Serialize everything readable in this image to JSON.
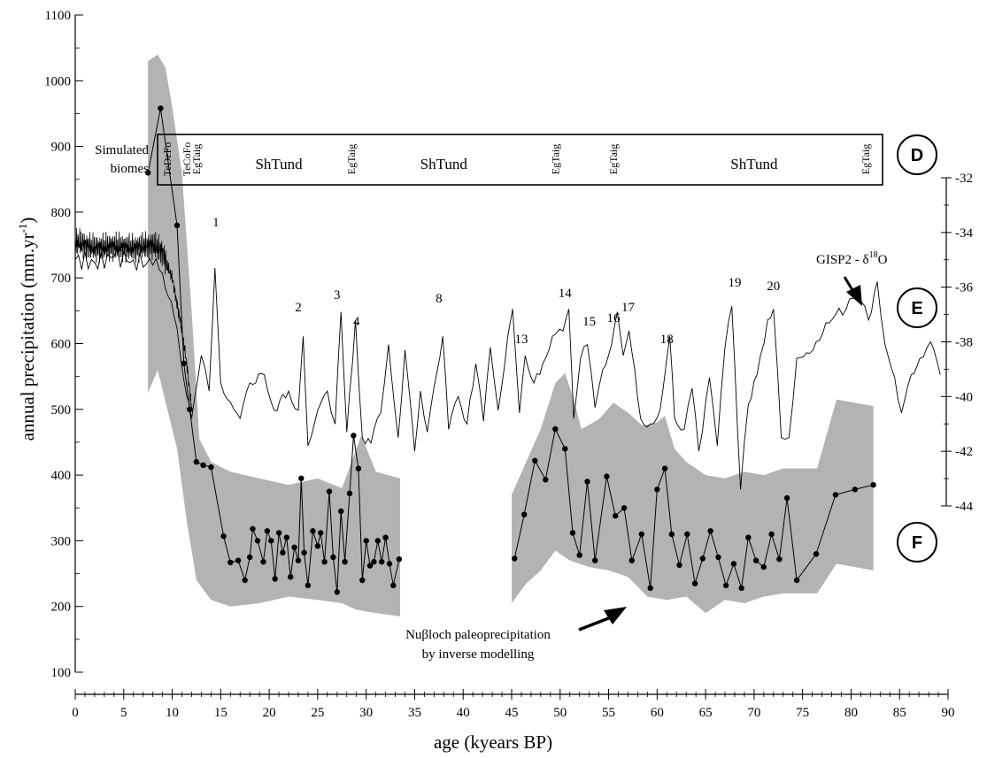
{
  "chart_data": {
    "type": "line",
    "xlabel": "age (kyears BP)",
    "ylabel_left": "annual precipitation (mm.yr-1)",
    "xlim": [
      0,
      90
    ],
    "ylim_left": [
      100,
      1100
    ],
    "ylim_right": [
      -44,
      -32
    ],
    "x_ticks": [
      "0",
      "5",
      "10",
      "15",
      "20",
      "25",
      "30",
      "35",
      "40",
      "45",
      "50",
      "55",
      "60",
      "65",
      "70",
      "75",
      "80",
      "85",
      "90"
    ],
    "y_ticks_left": [
      "100",
      "200",
      "300",
      "400",
      "500",
      "600",
      "700",
      "800",
      "900",
      "1000",
      "1100"
    ],
    "y_ticks_right": [
      "-32",
      "-34",
      "-36",
      "-38",
      "-40",
      "-42",
      "-44"
    ],
    "panel_markers": [
      "D",
      "E",
      "F"
    ],
    "biomes": {
      "label": "Simulated biomes",
      "entries": [
        {
          "text": "TeDeFo",
          "x": 9.5,
          "orientation": "vertical"
        },
        {
          "text": "TeCoFo",
          "x": 11.5,
          "orientation": "vertical"
        },
        {
          "text": "EgTaig",
          "x": 12.5,
          "orientation": "vertical"
        },
        {
          "text": "ShTund",
          "x": 21,
          "orientation": "horizontal"
        },
        {
          "text": "EgTaig",
          "x": 28.5,
          "orientation": "vertical"
        },
        {
          "text": "ShTund",
          "x": 38,
          "orientation": "horizontal"
        },
        {
          "text": "EgTaig",
          "x": 49.5,
          "orientation": "vertical"
        },
        {
          "text": "EgTaig",
          "x": 55.5,
          "orientation": "vertical"
        },
        {
          "text": "ShTund",
          "x": 70,
          "orientation": "horizontal"
        },
        {
          "text": "EgTaig",
          "x": 81.5,
          "orientation": "vertical"
        }
      ]
    },
    "events": [
      {
        "label": "1",
        "x": 14.5
      },
      {
        "label": "2",
        "x": 23
      },
      {
        "label": "3",
        "x": 27
      },
      {
        "label": "4",
        "x": 29
      },
      {
        "label": "8",
        "x": 37.5
      },
      {
        "label": "13",
        "x": 46
      },
      {
        "label": "14",
        "x": 50.5
      },
      {
        "label": "15",
        "x": 53
      },
      {
        "label": "16",
        "x": 55.5
      },
      {
        "label": "17",
        "x": 57
      },
      {
        "label": "18",
        "x": 61
      },
      {
        "label": "19",
        "x": 68
      },
      {
        "label": "20",
        "x": 72
      }
    ],
    "annotations": {
      "gisp2_label": "GISP2 - δ18O",
      "nussloch_line1": "Nuβloch paleoprecipitation",
      "nussloch_line2": "by inverse modelling"
    },
    "series": [
      {
        "name": "Nuβloch paleoprecipitation",
        "style": "line-with-dots",
        "points": [
          [
            7.5,
            860
          ],
          [
            8.8,
            958
          ],
          [
            10.5,
            780
          ],
          [
            11.2,
            570
          ],
          [
            11.8,
            500
          ],
          [
            12.5,
            420
          ],
          [
            13.2,
            415
          ],
          [
            14,
            412
          ],
          [
            15.3,
            307
          ],
          [
            16,
            267
          ],
          [
            16.8,
            270
          ],
          [
            17.5,
            240
          ],
          [
            18,
            275
          ],
          [
            18.3,
            318
          ],
          [
            18.8,
            300
          ],
          [
            19.4,
            268
          ],
          [
            19.8,
            315
          ],
          [
            20.2,
            300
          ],
          [
            20.6,
            242
          ],
          [
            21,
            312
          ],
          [
            21.4,
            282
          ],
          [
            21.8,
            305
          ],
          [
            22.2,
            245
          ],
          [
            22.6,
            290
          ],
          [
            23,
            270
          ],
          [
            23.3,
            395
          ],
          [
            23.6,
            282
          ],
          [
            24,
            232
          ],
          [
            24.5,
            315
          ],
          [
            25,
            292
          ],
          [
            25.3,
            312
          ],
          [
            25.7,
            268
          ],
          [
            26.2,
            375
          ],
          [
            26.6,
            275
          ],
          [
            27,
            222
          ],
          [
            27.4,
            345
          ],
          [
            27.8,
            268
          ],
          [
            28.3,
            372
          ],
          [
            28.7,
            460
          ],
          [
            29.2,
            410
          ],
          [
            29.6,
            240
          ],
          [
            30,
            300
          ],
          [
            30.4,
            262
          ],
          [
            30.8,
            268
          ],
          [
            31.2,
            300
          ],
          [
            31.6,
            268
          ],
          [
            32,
            305
          ],
          [
            32.4,
            265
          ],
          [
            32.8,
            232
          ],
          [
            33.4,
            272
          ]
        ]
      },
      {
        "name": "Nuβloch paleoprecipitation (late segment)",
        "style": "line-with-dots",
        "points": [
          [
            45.3,
            273
          ],
          [
            46.3,
            340
          ],
          [
            47.4,
            422
          ],
          [
            48.5,
            393
          ],
          [
            49.5,
            470
          ],
          [
            50.5,
            440
          ],
          [
            51.3,
            312
          ],
          [
            52,
            278
          ],
          [
            52.8,
            390
          ],
          [
            53.6,
            270
          ],
          [
            54.8,
            398
          ],
          [
            55.7,
            338
          ],
          [
            56.6,
            350
          ],
          [
            57.4,
            270
          ],
          [
            58.4,
            310
          ],
          [
            59.3,
            228
          ],
          [
            60,
            378
          ],
          [
            60.8,
            410
          ],
          [
            61.5,
            310
          ],
          [
            62.3,
            263
          ],
          [
            63.1,
            310
          ],
          [
            63.9,
            235
          ],
          [
            64.7,
            273
          ],
          [
            65.5,
            315
          ],
          [
            66.3,
            275
          ],
          [
            67.1,
            232
          ],
          [
            67.9,
            265
          ],
          [
            68.7,
            228
          ],
          [
            69.4,
            305
          ],
          [
            70.2,
            270
          ],
          [
            71,
            260
          ],
          [
            71.8,
            310
          ],
          [
            72.6,
            272
          ],
          [
            73.4,
            365
          ],
          [
            74.4,
            240
          ],
          [
            76.4,
            280
          ],
          [
            78.4,
            370
          ],
          [
            80.4,
            378
          ],
          [
            82.3,
            385
          ]
        ]
      },
      {
        "name": "GISP2 - δ18O",
        "axis": "right",
        "style": "line",
        "points": [
          [
            0,
            -35
          ],
          [
            2,
            -35.1
          ],
          [
            4,
            -34.9
          ],
          [
            6,
            -35
          ],
          [
            8,
            -35.2
          ],
          [
            9,
            -35.5
          ],
          [
            10.5,
            -37.5
          ],
          [
            11.5,
            -40
          ],
          [
            12,
            -40.8
          ],
          [
            13,
            -38.5
          ],
          [
            13.8,
            -39.8
          ],
          [
            14.4,
            -35.3
          ],
          [
            15,
            -39.5
          ],
          [
            16,
            -40.2
          ],
          [
            17,
            -40.8
          ],
          [
            18,
            -39.5
          ],
          [
            19.5,
            -39.2
          ],
          [
            20.5,
            -40.5
          ],
          [
            22,
            -39.8
          ],
          [
            23,
            -40.5
          ],
          [
            23.5,
            -37.8
          ],
          [
            24,
            -41.8
          ],
          [
            25,
            -40.5
          ],
          [
            26,
            -39.8
          ],
          [
            26.8,
            -41
          ],
          [
            27.4,
            -36.9
          ],
          [
            28,
            -41.3
          ],
          [
            28.9,
            -37.2
          ],
          [
            29.6,
            -41.5
          ],
          [
            30.5,
            -41.7
          ],
          [
            31.5,
            -40.6
          ],
          [
            32.3,
            -38.1
          ],
          [
            33.3,
            -41.5
          ],
          [
            34,
            -38.3
          ],
          [
            35,
            -42
          ],
          [
            35.6,
            -39.8
          ],
          [
            36.3,
            -41.3
          ],
          [
            37.3,
            -39.1
          ],
          [
            37.9,
            -37.8
          ],
          [
            38.5,
            -41.2
          ],
          [
            39.5,
            -40
          ],
          [
            40.4,
            -41
          ],
          [
            41.3,
            -38.8
          ],
          [
            42.1,
            -40.9
          ],
          [
            42.8,
            -38.2
          ],
          [
            43.6,
            -40.5
          ],
          [
            44.6,
            -37.8
          ],
          [
            45.1,
            -36.8
          ],
          [
            45.8,
            -40.6
          ],
          [
            46.4,
            -38.5
          ],
          [
            47.3,
            -39.5
          ],
          [
            48.2,
            -38.8
          ],
          [
            49.2,
            -37.8
          ],
          [
            50.3,
            -37.6
          ],
          [
            50.9,
            -36.8
          ],
          [
            51.4,
            -40.8
          ],
          [
            52.1,
            -38.6
          ],
          [
            52.8,
            -38.1
          ],
          [
            53.6,
            -40.4
          ],
          [
            54.4,
            -39
          ],
          [
            55.3,
            -38.1
          ],
          [
            55.9,
            -36.9
          ],
          [
            56.5,
            -38.5
          ],
          [
            57.1,
            -37.6
          ],
          [
            58.3,
            -40.8
          ],
          [
            59.3,
            -41
          ],
          [
            60.3,
            -40.5
          ],
          [
            61.3,
            -37.8
          ],
          [
            61.8,
            -40.8
          ],
          [
            62.8,
            -41.2
          ],
          [
            63.6,
            -39.7
          ],
          [
            64.3,
            -42
          ],
          [
            65.4,
            -39.3
          ],
          [
            66.2,
            -41.8
          ],
          [
            67,
            -38.2
          ],
          [
            67.7,
            -36.7
          ],
          [
            68.6,
            -43.4
          ],
          [
            69.4,
            -40.3
          ],
          [
            70.3,
            -39.2
          ],
          [
            71.4,
            -37.2
          ],
          [
            72,
            -36.8
          ],
          [
            72.8,
            -41.5
          ],
          [
            73.6,
            -41.5
          ],
          [
            74.4,
            -38.6
          ],
          [
            75.4,
            -38.4
          ],
          [
            76.4,
            -38
          ],
          [
            77.4,
            -37.3
          ],
          [
            78.4,
            -37
          ],
          [
            79.5,
            -36.8
          ],
          [
            80.2,
            -36.4
          ],
          [
            81,
            -36.5
          ],
          [
            81.8,
            -37.2
          ],
          [
            82.7,
            -35.8
          ],
          [
            83.5,
            -38.1
          ],
          [
            84.5,
            -39.3
          ],
          [
            85.2,
            -40.6
          ],
          [
            86.2,
            -39.2
          ],
          [
            87.1,
            -38.6
          ],
          [
            88.2,
            -38
          ],
          [
            89.2,
            -39.2
          ]
        ]
      }
    ],
    "uncertainty_bands": [
      {
        "upper": [
          [
            7.5,
            1030
          ],
          [
            8.5,
            1040
          ],
          [
            9.3,
            1020
          ],
          [
            10,
            960
          ],
          [
            11,
            860
          ],
          [
            12,
            650
          ],
          [
            12.8,
            455
          ],
          [
            14,
            420
          ],
          [
            16,
            405
          ],
          [
            19,
            395
          ],
          [
            22,
            385
          ],
          [
            25,
            395
          ],
          [
            27.5,
            380
          ],
          [
            28.5,
            420
          ],
          [
            29.5,
            460
          ],
          [
            31,
            405
          ],
          [
            33.5,
            395
          ]
        ],
        "lower": [
          [
            7.5,
            525
          ],
          [
            8.5,
            560
          ],
          [
            9.5,
            500
          ],
          [
            10.5,
            440
          ],
          [
            11.5,
            330
          ],
          [
            12.5,
            240
          ],
          [
            14,
            210
          ],
          [
            16,
            200
          ],
          [
            19,
            205
          ],
          [
            22,
            215
          ],
          [
            25,
            210
          ],
          [
            27.5,
            205
          ],
          [
            29,
            195
          ],
          [
            31,
            190
          ],
          [
            33.5,
            185
          ]
        ]
      },
      {
        "upper": [
          [
            45,
            370
          ],
          [
            46.5,
            420
          ],
          [
            48,
            470
          ],
          [
            49.5,
            540
          ],
          [
            50.5,
            555
          ],
          [
            51.3,
            520
          ],
          [
            52.2,
            470
          ],
          [
            54,
            485
          ],
          [
            55.5,
            510
          ],
          [
            57,
            495
          ],
          [
            58.5,
            475
          ],
          [
            60,
            480
          ],
          [
            60.8,
            490
          ],
          [
            61.8,
            440
          ],
          [
            63,
            420
          ],
          [
            65,
            400
          ],
          [
            67,
            395
          ],
          [
            69,
            405
          ],
          [
            71,
            400
          ],
          [
            73,
            410
          ],
          [
            76.5,
            410
          ],
          [
            78.5,
            515
          ],
          [
            82.3,
            505
          ]
        ],
        "lower": [
          [
            45,
            205
          ],
          [
            46.5,
            235
          ],
          [
            48,
            255
          ],
          [
            49.5,
            285
          ],
          [
            51,
            270
          ],
          [
            53,
            260
          ],
          [
            55,
            255
          ],
          [
            57,
            245
          ],
          [
            59,
            215
          ],
          [
            61,
            210
          ],
          [
            63,
            215
          ],
          [
            65,
            190
          ],
          [
            67,
            210
          ],
          [
            69,
            205
          ],
          [
            71,
            215
          ],
          [
            73,
            220
          ],
          [
            76.5,
            220
          ],
          [
            78.5,
            265
          ],
          [
            82.3,
            255
          ]
        ]
      }
    ],
    "smoothed_curve": {
      "points": [
        [
          0,
          755
        ],
        [
          2,
          745
        ],
        [
          4,
          748
        ],
        [
          6,
          745
        ],
        [
          8,
          750
        ],
        [
          9,
          740
        ],
        [
          9.5,
          718
        ],
        [
          10,
          700
        ],
        [
          10.5,
          660
        ],
        [
          11,
          620
        ],
        [
          11.5,
          570
        ],
        [
          12,
          500
        ]
      ]
    }
  }
}
